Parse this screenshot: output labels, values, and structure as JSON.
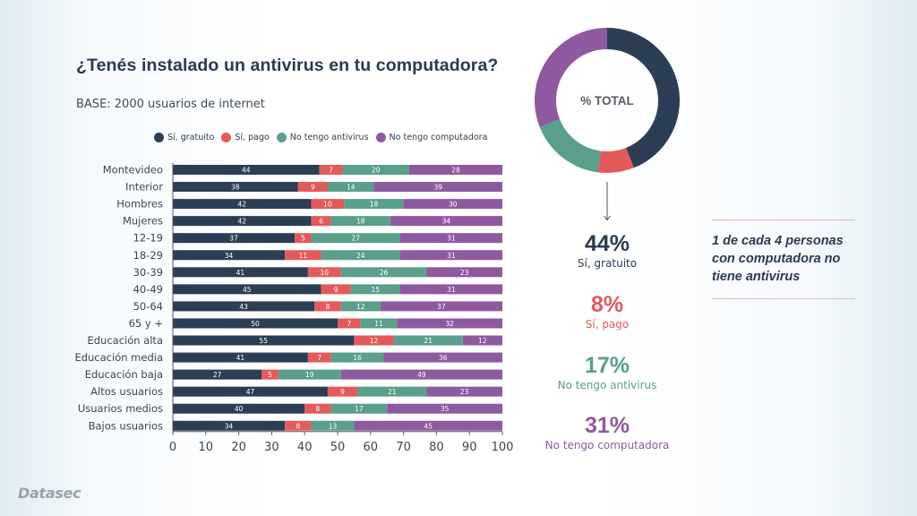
{
  "header": {
    "title": "¿Tenés instalado un antivirus en tu computadora?",
    "subtitle": "BASE: 2000 usuarios de internet"
  },
  "colors": {
    "si_gratuito": "#2b3e55",
    "si_pago": "#e35a5a",
    "no_antivirus": "#5a9e8c",
    "no_computadora": "#8f59a0"
  },
  "chart_data": [
    {
      "type": "bar",
      "orientation": "horizontal",
      "stacked": true,
      "title": "¿Tenés instalado un antivirus en tu computadora?",
      "subtitle": "BASE: 2000 usuarios de internet",
      "categories": [
        "Montevideo",
        "Interior",
        "Hombres",
        "Mujeres",
        "12-19",
        "18-29",
        "30-39",
        "40-49",
        "50-64",
        "65 y +",
        "Educación alta",
        "Educación media",
        "Educación baja",
        "Altos usuarios",
        "Usuarios medios",
        "Bajos usuarios"
      ],
      "series": [
        {
          "name": "Sí, gratuito",
          "color": "#2b3e55",
          "values": [
            44,
            38,
            42,
            42,
            37,
            34,
            41,
            45,
            43,
            50,
            55,
            41,
            27,
            47,
            40,
            34
          ]
        },
        {
          "name": "Sí, pago",
          "color": "#e35a5a",
          "values": [
            7,
            9,
            10,
            6,
            5,
            11,
            10,
            9,
            8,
            7,
            12,
            7,
            5,
            9,
            8,
            8
          ]
        },
        {
          "name": "No tengo antivirus",
          "color": "#5a9e8c",
          "values": [
            20,
            14,
            18,
            18,
            27,
            24,
            26,
            15,
            12,
            11,
            21,
            16,
            19,
            21,
            17,
            13
          ]
        },
        {
          "name": "No tengo computadora",
          "color": "#8f59a0",
          "values": [
            28,
            39,
            30,
            34,
            31,
            31,
            23,
            31,
            37,
            32,
            12,
            36,
            49,
            23,
            35,
            45
          ]
        }
      ],
      "xlim": [
        0,
        100
      ],
      "xticks": [
        "0",
        "10",
        "20",
        "30",
        "40",
        "50",
        "60",
        "70",
        "80",
        "90",
        "100"
      ],
      "xlabel": "",
      "ylabel": "",
      "grid": false,
      "legend": "top"
    },
    {
      "type": "pie",
      "donut": true,
      "title": "% TOTAL",
      "categories": [
        "Sí, gratuito",
        "Sí, pago",
        "No tengo antivirus",
        "No tengo computadora"
      ],
      "values": [
        44,
        8,
        17,
        31
      ],
      "colors": [
        "#2b3e55",
        "#e35a5a",
        "#5a9e8c",
        "#8f59a0"
      ]
    }
  ],
  "legend": [
    {
      "label": "Sí, gratuito",
      "color": "#2b3e55"
    },
    {
      "label": "Sí, pago",
      "color": "#e35a5a"
    },
    {
      "label": "No tengo antivirus",
      "color": "#5a9e8c"
    },
    {
      "label": "No tengo computadora",
      "color": "#8f59a0"
    }
  ],
  "donut": {
    "center_label": "% TOTAL"
  },
  "stats": [
    {
      "value": "44%",
      "label": "Sí, gratuito",
      "color": "#2b3a4e",
      "label_color": "#2b3a4e"
    },
    {
      "value": "8%",
      "label": "Sí, pago",
      "color": "#e35a5a",
      "label_color": "#e35a5a"
    },
    {
      "value": "17%",
      "label": "No tengo antivirus",
      "color": "#5a9e8c",
      "label_color": "#5a9e8c"
    },
    {
      "value": "31%",
      "label": "No tengo computadora",
      "color": "#8f59a0",
      "label_color": "#8f59a0"
    }
  ],
  "callout": {
    "text": "1 de cada 4 personas con computadora no tiene antivirus"
  },
  "footer": {
    "logo": "Datasec"
  }
}
